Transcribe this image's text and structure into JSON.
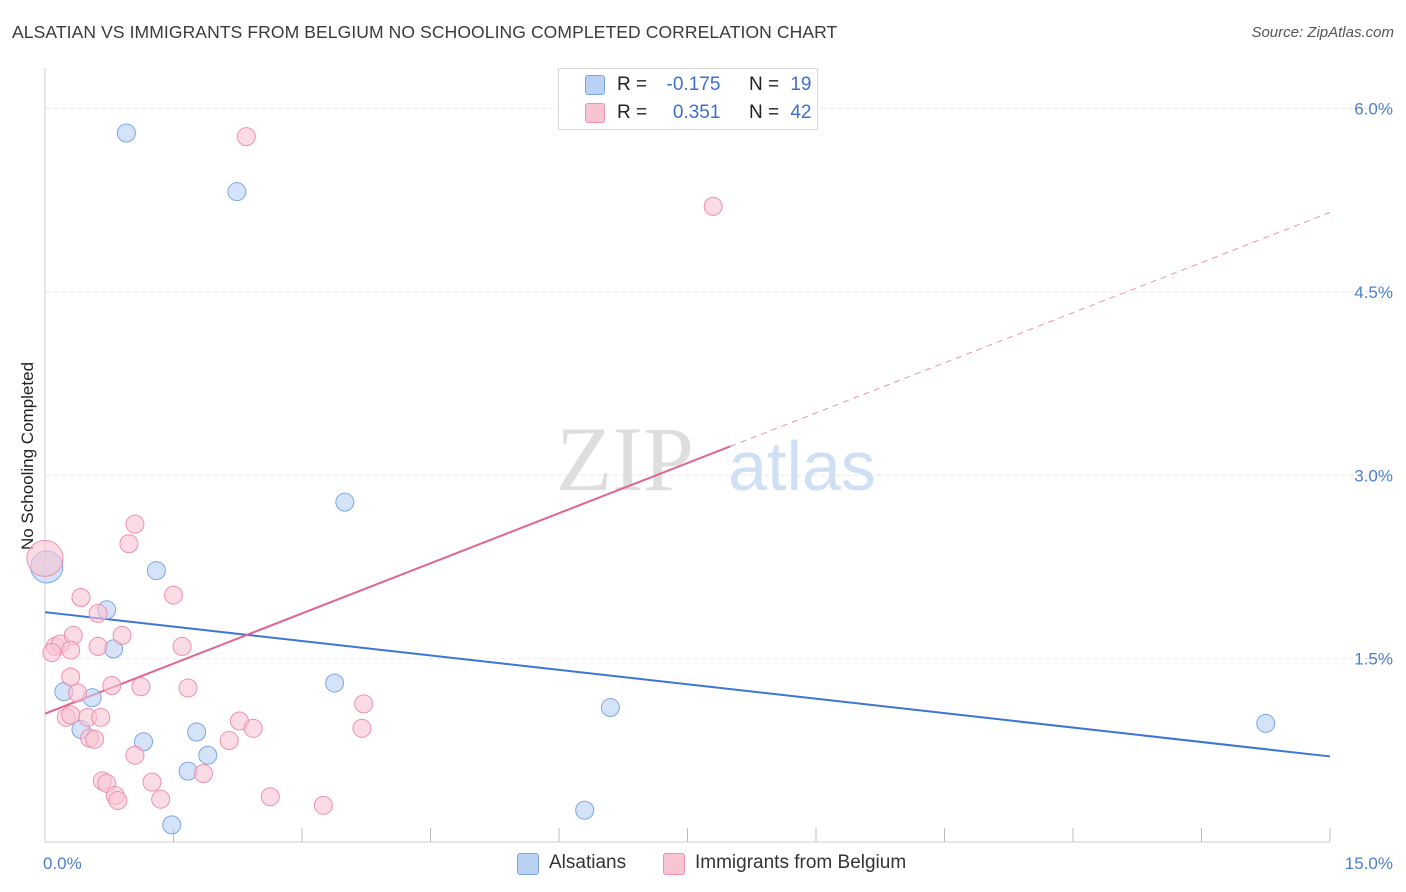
{
  "header": {
    "title": "ALSATIAN VS IMMIGRANTS FROM BELGIUM NO SCHOOLING COMPLETED CORRELATION CHART",
    "source": "Source: ZipAtlas.com"
  },
  "watermark": {
    "zip": "ZIP",
    "atlas": "atlas"
  },
  "legend": {
    "rows": [
      {
        "r_label": "R =",
        "r_value": "-0.175",
        "n_label": "N =",
        "n_value": "19"
      },
      {
        "r_label": "R =",
        "r_value": "0.351",
        "n_label": "N =",
        "n_value": "42"
      }
    ]
  },
  "bottom_legend": {
    "series1": "Alsatians",
    "series2": "Immigrants from Belgium"
  },
  "colors": {
    "blue_fill": "#b9d1f3",
    "blue_stroke": "#7aa6e6",
    "blue_line": "#3a76d2",
    "pink_fill": "#f8c4d3",
    "pink_stroke": "#ee8fab",
    "pink_line": "#e0648f",
    "axis_text": "#4a7fd0",
    "grid": "#e6e6e6"
  },
  "chart_data": {
    "type": "scatter",
    "title": "ALSATIAN VS IMMIGRANTS FROM BELGIUM NO SCHOOLING COMPLETED CORRELATION CHART",
    "xlabel": "",
    "ylabel": "No Schooling Completed",
    "xlim": [
      0,
      15
    ],
    "ylim": [
      0,
      6.25
    ],
    "x_tick_labels": [
      {
        "value": 0,
        "label": "0.0%"
      },
      {
        "value": 15,
        "label": "15.0%"
      }
    ],
    "y_tick_labels": [
      {
        "value": 1.5,
        "label": "1.5%"
      },
      {
        "value": 3.0,
        "label": "3.0%"
      },
      {
        "value": 4.5,
        "label": "4.5%"
      },
      {
        "value": 6.0,
        "label": "6.0%"
      }
    ],
    "x_minor_ticks": [
      1.5,
      3.0,
      4.5,
      6.0,
      7.5,
      9.0,
      10.5,
      12.0,
      13.5,
      15.0
    ],
    "series": [
      {
        "name": "Alsatians",
        "color": "blue",
        "points": [
          [
            0.02,
            2.25,
            16
          ],
          [
            0.95,
            5.8,
            9
          ],
          [
            2.24,
            5.32,
            9
          ],
          [
            3.5,
            2.78,
            9
          ],
          [
            1.3,
            2.22,
            9
          ],
          [
            0.72,
            1.9,
            9
          ],
          [
            0.8,
            1.58,
            9
          ],
          [
            0.22,
            1.23,
            9
          ],
          [
            0.55,
            1.18,
            9
          ],
          [
            0.42,
            0.92,
            9
          ],
          [
            1.15,
            0.82,
            9
          ],
          [
            1.77,
            0.9,
            9
          ],
          [
            1.9,
            0.71,
            9
          ],
          [
            1.67,
            0.58,
            9
          ],
          [
            1.48,
            0.14,
            9
          ],
          [
            3.38,
            1.3,
            9
          ],
          [
            6.6,
            1.1,
            9
          ],
          [
            6.3,
            0.26,
            9
          ],
          [
            14.25,
            0.97,
            9
          ]
        ],
        "trend": {
          "x0": 0,
          "y0": 1.88,
          "x1": 15,
          "y1": 0.7,
          "dashed_from": null
        }
      },
      {
        "name": "Immigrants from Belgium",
        "color": "pink",
        "points": [
          [
            0.0,
            2.32,
            18
          ],
          [
            2.35,
            5.77,
            9
          ],
          [
            7.8,
            5.2,
            9
          ],
          [
            1.05,
            2.6,
            9
          ],
          [
            0.98,
            2.44,
            9
          ],
          [
            1.5,
            2.02,
            9
          ],
          [
            0.42,
            2.0,
            9
          ],
          [
            0.62,
            1.87,
            9
          ],
          [
            0.12,
            1.6,
            9
          ],
          [
            0.18,
            1.62,
            9
          ],
          [
            0.33,
            1.69,
            9
          ],
          [
            0.62,
            1.6,
            9
          ],
          [
            0.9,
            1.69,
            9
          ],
          [
            1.6,
            1.6,
            9
          ],
          [
            0.08,
            1.55,
            9
          ],
          [
            0.3,
            1.35,
            9
          ],
          [
            0.78,
            1.28,
            9
          ],
          [
            1.12,
            1.27,
            9
          ],
          [
            1.67,
            1.26,
            9
          ],
          [
            0.38,
            1.22,
            9
          ],
          [
            0.25,
            1.02,
            9
          ],
          [
            0.3,
            1.04,
            9
          ],
          [
            0.5,
            1.02,
            9
          ],
          [
            0.65,
            1.02,
            9
          ],
          [
            0.52,
            0.85,
            9
          ],
          [
            0.58,
            0.84,
            9
          ],
          [
            2.27,
            0.99,
            9
          ],
          [
            2.43,
            0.93,
            9
          ],
          [
            2.15,
            0.83,
            9
          ],
          [
            3.72,
            1.13,
            9
          ],
          [
            3.7,
            0.93,
            9
          ],
          [
            1.05,
            0.71,
            9
          ],
          [
            0.67,
            0.5,
            9
          ],
          [
            0.72,
            0.48,
            9
          ],
          [
            1.25,
            0.49,
            9
          ],
          [
            1.85,
            0.56,
            9
          ],
          [
            0.82,
            0.38,
            9
          ],
          [
            0.85,
            0.34,
            9
          ],
          [
            1.35,
            0.35,
            9
          ],
          [
            2.63,
            0.37,
            9
          ],
          [
            3.25,
            0.3,
            9
          ],
          [
            0.3,
            1.57,
            9
          ]
        ],
        "trend": {
          "x0": 0,
          "y0": 1.05,
          "x1": 15,
          "y1": 5.15,
          "dashed_from": 8.0
        }
      }
    ]
  }
}
